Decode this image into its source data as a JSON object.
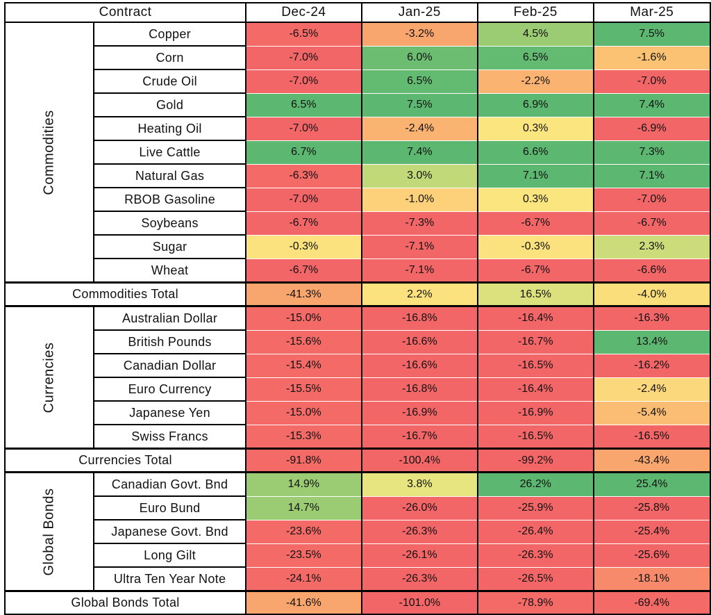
{
  "header": {
    "contract_label": "Contract",
    "months": [
      "Dec-24",
      "Jan-25",
      "Feb-25",
      "Mar-25"
    ]
  },
  "groups": [
    {
      "sector": "Commodities",
      "rows": [
        {
          "name": "Copper",
          "values": [
            "-6.5%",
            "-3.2%",
            "4.5%",
            "7.5%"
          ],
          "colors": [
            "#f36a67",
            "#f9a56e",
            "#9bcc73",
            "#5cb870"
          ]
        },
        {
          "name": "Corn",
          "values": [
            "-7.0%",
            "6.0%",
            "6.5%",
            "-1.6%"
          ],
          "colors": [
            "#f26667",
            "#6cbc72",
            "#63ba71",
            "#fbc274"
          ]
        },
        {
          "name": "Crude Oil",
          "values": [
            "-7.0%",
            "6.5%",
            "-2.2%",
            "-7.0%"
          ],
          "colors": [
            "#f26667",
            "#63ba71",
            "#fab371",
            "#f26667"
          ]
        },
        {
          "name": "Gold",
          "values": [
            "6.5%",
            "7.5%",
            "6.9%",
            "7.4%"
          ],
          "colors": [
            "#5cb870",
            "#5cb870",
            "#5cb870",
            "#5cb870"
          ]
        },
        {
          "name": "Heating Oil",
          "values": [
            "-7.0%",
            "-2.4%",
            "0.3%",
            "-6.9%"
          ],
          "colors": [
            "#f26667",
            "#fab371",
            "#fbe57e",
            "#f26667"
          ]
        },
        {
          "name": "Live Cattle",
          "values": [
            "6.7%",
            "7.4%",
            "6.6%",
            "7.3%"
          ],
          "colors": [
            "#5cb870",
            "#5cb870",
            "#5cb870",
            "#5cb870"
          ]
        },
        {
          "name": "Natural Gas",
          "values": [
            "-6.3%",
            "3.0%",
            "7.1%",
            "7.1%"
          ],
          "colors": [
            "#f36a67",
            "#c2d97a",
            "#5cb870",
            "#5cb870"
          ]
        },
        {
          "name": "RBOB Gasoline",
          "values": [
            "-7.0%",
            "-1.0%",
            "0.3%",
            "-7.0%"
          ],
          "colors": [
            "#f26667",
            "#fcd17a",
            "#fbe57e",
            "#f26667"
          ]
        },
        {
          "name": "Soybeans",
          "values": [
            "-6.7%",
            "-7.3%",
            "-6.7%",
            "-6.7%"
          ],
          "colors": [
            "#f26667",
            "#f26667",
            "#f26667",
            "#f26667"
          ]
        },
        {
          "name": "Sugar",
          "values": [
            "-0.3%",
            "-7.1%",
            "-0.3%",
            "2.3%"
          ],
          "colors": [
            "#fbe27e",
            "#f26667",
            "#fbe27e",
            "#cddc7b"
          ]
        },
        {
          "name": "Wheat",
          "values": [
            "-6.7%",
            "-7.1%",
            "-6.7%",
            "-6.6%"
          ],
          "colors": [
            "#f26667",
            "#f26667",
            "#f26667",
            "#f26667"
          ]
        }
      ],
      "total": {
        "name": "Commodities Total",
        "values": [
          "-41.3%",
          "2.2%",
          "16.5%",
          "-4.0%"
        ],
        "colors": [
          "#f9a56e",
          "#fbe27e",
          "#dde17d",
          "#fbde7c"
        ]
      }
    },
    {
      "sector": "Currencies",
      "rows": [
        {
          "name": "Australian Dollar",
          "values": [
            "-15.0%",
            "-16.8%",
            "-16.4%",
            "-16.3%"
          ],
          "colors": [
            "#f36a67",
            "#f26667",
            "#f26667",
            "#f26667"
          ]
        },
        {
          "name": "British Pounds",
          "values": [
            "-15.6%",
            "-16.6%",
            "-16.7%",
            "13.4%"
          ],
          "colors": [
            "#f36a67",
            "#f26667",
            "#f26667",
            "#5cb870"
          ]
        },
        {
          "name": "Canadian Dollar",
          "values": [
            "-15.4%",
            "-16.6%",
            "-16.5%",
            "-16.2%"
          ],
          "colors": [
            "#f36a67",
            "#f26667",
            "#f26667",
            "#f26667"
          ]
        },
        {
          "name": "Euro Currency",
          "values": [
            "-15.5%",
            "-16.8%",
            "-16.4%",
            "-2.4%"
          ],
          "colors": [
            "#f36a67",
            "#f26667",
            "#f26667",
            "#fbd87b"
          ]
        },
        {
          "name": "Japanese Yen",
          "values": [
            "-15.0%",
            "-16.9%",
            "-16.9%",
            "-5.4%"
          ],
          "colors": [
            "#f36a67",
            "#f26667",
            "#f26667",
            "#fabd73"
          ]
        },
        {
          "name": "Swiss Francs",
          "values": [
            "-15.3%",
            "-16.7%",
            "-16.5%",
            "-16.5%"
          ],
          "colors": [
            "#f36a67",
            "#f26667",
            "#f26667",
            "#f26667"
          ]
        }
      ],
      "total": {
        "name": "Currencies Total",
        "values": [
          "-91.8%",
          "-100.4%",
          "-99.2%",
          "-43.4%"
        ],
        "colors": [
          "#f36a67",
          "#f26667",
          "#f26667",
          "#f9a56e"
        ]
      }
    },
    {
      "sector": "Global Bonds",
      "rows": [
        {
          "name": "Canadian Govt. Bnd",
          "values": [
            "14.9%",
            "3.8%",
            "26.2%",
            "25.4%"
          ],
          "colors": [
            "#9bcc73",
            "#e6e57f",
            "#5cb870",
            "#5cb870"
          ]
        },
        {
          "name": "Euro Bund",
          "values": [
            "14.7%",
            "-26.0%",
            "-25.9%",
            "-25.8%"
          ],
          "colors": [
            "#9bcc73",
            "#f26667",
            "#f26667",
            "#f26667"
          ]
        },
        {
          "name": "Japanese Govt. Bnd",
          "values": [
            "-23.6%",
            "-26.3%",
            "-26.4%",
            "-25.4%"
          ],
          "colors": [
            "#f36a67",
            "#f26667",
            "#f26667",
            "#f26667"
          ]
        },
        {
          "name": "Long Gilt",
          "values": [
            "-23.5%",
            "-26.1%",
            "-26.3%",
            "-25.6%"
          ],
          "colors": [
            "#f36a67",
            "#f26667",
            "#f26667",
            "#f26667"
          ]
        },
        {
          "name": "Ultra Ten Year Note",
          "values": [
            "-24.1%",
            "-26.3%",
            "-26.5%",
            "-18.1%"
          ],
          "colors": [
            "#f36a67",
            "#f26667",
            "#f26667",
            "#f68a6b"
          ]
        }
      ],
      "total": {
        "name": "Global Bonds Total",
        "values": [
          "-41.6%",
          "-101.0%",
          "-78.9%",
          "-69.4%"
        ],
        "colors": [
          "#f9a56e",
          "#f26667",
          "#f36a67",
          "#f36a67"
        ]
      }
    }
  ]
}
